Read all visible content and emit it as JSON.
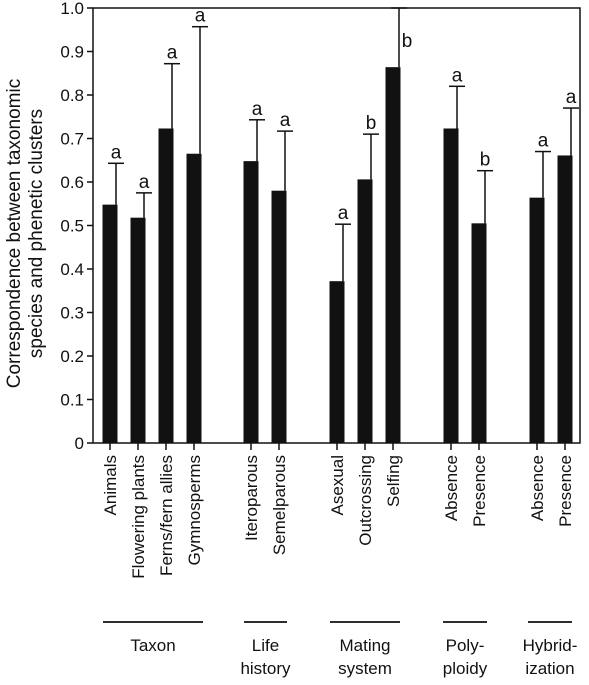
{
  "chart_data": {
    "type": "bar",
    "ylabel": "Correspondence between taxonomic species and phenetic clusters",
    "ylabel_lines": [
      "Correspondence between taxonomic",
      "species and phenetic clusters"
    ],
    "ylim": [
      0,
      1.0
    ],
    "yticks": [
      "0",
      "0.1",
      "0.2",
      "0.3",
      "0.4",
      "0.5",
      "0.6",
      "0.7",
      "0.8",
      "0.9",
      "1.0"
    ],
    "grid": false,
    "bar_color": "#111111",
    "groups": [
      {
        "name_lines": [
          "Taxon"
        ],
        "categories": [
          "Animals",
          "Flowering plants",
          "Ferns/fern allies",
          "Gymnosperms"
        ],
        "values": [
          0.548,
          0.518,
          0.723,
          0.665
        ],
        "error_upper": [
          0.643,
          0.575,
          0.872,
          0.957
        ],
        "significance": [
          "a",
          "a",
          "a",
          "a"
        ]
      },
      {
        "name_lines": [
          "Life",
          "history"
        ],
        "categories": [
          "Iteroparous",
          "Semelparous"
        ],
        "values": [
          0.648,
          0.58
        ],
        "error_upper": [
          0.743,
          0.717
        ],
        "significance": [
          "a",
          "a"
        ]
      },
      {
        "name_lines": [
          "Mating",
          "system"
        ],
        "categories": [
          "Asexual",
          "Outcrossing",
          "Selfing"
        ],
        "values": [
          0.372,
          0.606,
          0.864
        ],
        "error_upper": [
          0.503,
          0.71,
          1.0
        ],
        "significance": [
          "a",
          "b",
          "b"
        ]
      },
      {
        "name_lines": [
          "Poly-",
          "ploidy"
        ],
        "categories": [
          "Absence",
          "Presence"
        ],
        "values": [
          0.723,
          0.505
        ],
        "error_upper": [
          0.82,
          0.626
        ],
        "significance": [
          "a",
          "b"
        ]
      },
      {
        "name_lines": [
          "Hybrid-",
          "ization"
        ],
        "categories": [
          "Absence",
          "Presence"
        ],
        "values": [
          0.564,
          0.661
        ],
        "error_upper": [
          0.67,
          0.77
        ],
        "significance": [
          "a",
          "a"
        ]
      }
    ]
  }
}
